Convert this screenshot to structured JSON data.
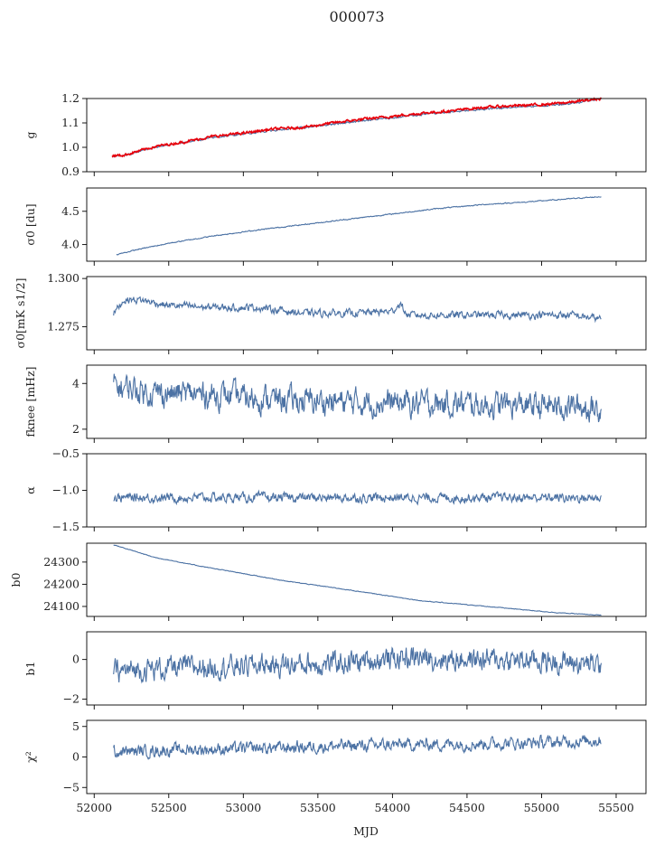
{
  "title": "000073",
  "xlabel": "MJD",
  "colors": {
    "series": "#4c72a4",
    "overlay": "#e8000b",
    "axes": "#000000"
  },
  "chart_data": [
    {
      "type": "line",
      "ylabel": "g",
      "ylim": [
        0.9,
        1.2
      ],
      "yticks": [
        "0.9",
        "1.0",
        "1.1",
        "1.2"
      ],
      "ytick_values": [
        0.9,
        1.0,
        1.1,
        1.2
      ],
      "xlim": [
        51950,
        55700
      ],
      "series": [
        {
          "x": [
            52120,
            52200,
            52400,
            52600,
            52800,
            53000,
            53200,
            53400,
            53600,
            53800,
            54000,
            54200,
            54400,
            54600,
            54800,
            55000,
            55200,
            55400
          ],
          "values": [
            0.962,
            0.967,
            1.0,
            1.02,
            1.04,
            1.055,
            1.07,
            1.08,
            1.095,
            1.11,
            1.12,
            1.135,
            1.145,
            1.155,
            1.165,
            1.17,
            1.18,
            1.2
          ],
          "noise": 0.003,
          "color": "#4c72a4"
        },
        {
          "x": [
            52120,
            52200,
            52400,
            52600,
            52800,
            53000,
            53200,
            53400,
            53600,
            53800,
            54000,
            54200,
            54400,
            54600,
            54800,
            55000,
            55200,
            55400
          ],
          "values": [
            0.965,
            0.968,
            1.002,
            1.022,
            1.045,
            1.058,
            1.075,
            1.082,
            1.1,
            1.115,
            1.127,
            1.14,
            1.15,
            1.163,
            1.17,
            1.175,
            1.185,
            1.2
          ],
          "noise": 0.004,
          "color": "#e8000b"
        }
      ]
    },
    {
      "type": "line",
      "ylabel": "σ0 [du]",
      "ylim": [
        3.75,
        4.85
      ],
      "yticks": [
        "4.0",
        "4.5"
      ],
      "ytick_values": [
        4.0,
        4.5
      ],
      "xlim": [
        51950,
        55700
      ],
      "series": [
        {
          "x": [
            52150,
            52300,
            52500,
            52800,
            53100,
            53400,
            53700,
            54000,
            54300,
            54600,
            54900,
            55200,
            55400
          ],
          "values": [
            3.85,
            3.93,
            4.02,
            4.13,
            4.22,
            4.3,
            4.38,
            4.46,
            4.54,
            4.6,
            4.64,
            4.69,
            4.72
          ],
          "noise": 0.006,
          "color": "#4c72a4"
        }
      ]
    },
    {
      "type": "line",
      "ylabel": "σ0[mK s1/2]",
      "ylim": [
        1.263,
        1.301
      ],
      "yticks": [
        "1.275",
        "1.300"
      ],
      "ytick_values": [
        1.275,
        1.3
      ],
      "xlim": [
        51950,
        55700
      ],
      "series": [
        {
          "x": [
            52130,
            52200,
            52300,
            52500,
            52800,
            53100,
            53400,
            53700,
            54000,
            54050,
            54100,
            54400,
            54700,
            55000,
            55200,
            55400
          ],
          "values": [
            1.282,
            1.289,
            1.289,
            1.286,
            1.285,
            1.285,
            1.282,
            1.282,
            1.283,
            1.287,
            1.281,
            1.281,
            1.281,
            1.281,
            1.281,
            1.279
          ],
          "noise": 0.0015,
          "color": "#4c72a4"
        }
      ]
    },
    {
      "type": "line",
      "ylabel": "fknee [mHz]",
      "ylim": [
        1.6,
        4.8
      ],
      "yticks": [
        "2",
        "4"
      ],
      "ytick_values": [
        2,
        4
      ],
      "xlim": [
        51950,
        55700
      ],
      "series": [
        {
          "x": [
            52130,
            52400,
            52800,
            53200,
            53600,
            54000,
            54400,
            54800,
            55200,
            55400
          ],
          "values": [
            3.9,
            3.6,
            3.5,
            3.3,
            3.2,
            3.15,
            3.1,
            3.05,
            3.0,
            2.9
          ],
          "noise": 0.45,
          "color": "#4c72a4"
        }
      ]
    },
    {
      "type": "line",
      "ylabel": "α",
      "ylim": [
        -1.5,
        -0.5
      ],
      "yticks": [
        "−1.5",
        "−1.0",
        "−0.5"
      ],
      "ytick_values": [
        -1.5,
        -1.0,
        -0.5
      ],
      "xlim": [
        51950,
        55700
      ],
      "series": [
        {
          "x": [
            52130,
            52800,
            53500,
            54200,
            54900,
            55400
          ],
          "values": [
            -1.1,
            -1.1,
            -1.1,
            -1.1,
            -1.1,
            -1.1
          ],
          "noise": 0.05,
          "color": "#4c72a4"
        }
      ]
    },
    {
      "type": "line",
      "ylabel": "b0",
      "ylim": [
        24055,
        24385
      ],
      "yticks": [
        "24100",
        "24200",
        "24300"
      ],
      "ytick_values": [
        24100,
        24200,
        24300
      ],
      "xlim": [
        51950,
        55700
      ],
      "series": [
        {
          "x": [
            52130,
            52400,
            52700,
            53000,
            53300,
            53600,
            53900,
            54200,
            54500,
            54800,
            55100,
            55400
          ],
          "values": [
            24378,
            24322,
            24283,
            24248,
            24213,
            24185,
            24155,
            24125,
            24108,
            24090,
            24072,
            24060
          ],
          "noise": 1.2,
          "color": "#4c72a4"
        }
      ]
    },
    {
      "type": "line",
      "ylabel": "b1",
      "ylim": [
        -2.3,
        1.4
      ],
      "yticks": [
        "−2",
        "0"
      ],
      "ytick_values": [
        -2,
        0
      ],
      "xlim": [
        51950,
        55700
      ],
      "series": [
        {
          "x": [
            52130,
            52600,
            53100,
            53600,
            54100,
            54600,
            55100,
            55400
          ],
          "values": [
            -0.6,
            -0.4,
            -0.3,
            -0.2,
            0.1,
            0.0,
            -0.1,
            -0.3
          ],
          "noise": 0.45,
          "color": "#4c72a4"
        }
      ]
    },
    {
      "type": "line",
      "ylabel": "χ²",
      "ylim": [
        -6,
        6
      ],
      "yticks": [
        "−5",
        "0",
        "5"
      ],
      "ytick_values": [
        -5,
        0,
        5
      ],
      "xlim": [
        51950,
        55700
      ],
      "series": [
        {
          "x": [
            52130,
            52600,
            53100,
            53600,
            54100,
            54600,
            55100,
            55400
          ],
          "values": [
            0.8,
            1.2,
            1.4,
            1.8,
            2.0,
            2.2,
            2.4,
            2.8
          ],
          "noise": 0.8,
          "color": "#4c72a4"
        }
      ]
    }
  ],
  "xticks": [
    "52000",
    "52500",
    "53000",
    "53500",
    "54000",
    "54500",
    "55000",
    "55500"
  ],
  "xtick_values": [
    52000,
    52500,
    53000,
    53500,
    54000,
    54500,
    55000,
    55500
  ]
}
